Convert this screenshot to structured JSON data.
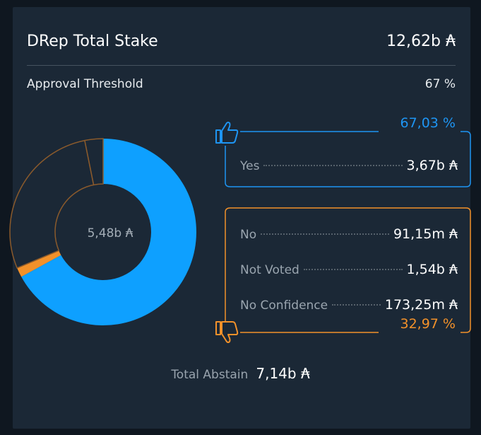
{
  "header": {
    "title": "DRep Total Stake",
    "total_stake": "12,62b ₳"
  },
  "threshold": {
    "label": "Approval Threshold",
    "value": "67 %"
  },
  "chart_data": {
    "type": "pie",
    "center_label": "5,48b ₳",
    "slices": [
      {
        "name": "Yes",
        "value": 3.67,
        "color": "#0ea0ff"
      },
      {
        "name": "No",
        "value": 0.09115,
        "color": "#f2912a"
      },
      {
        "name": "Not Voted",
        "value": 1.54,
        "color": "#1b2836"
      },
      {
        "name": "No Confidence",
        "value": 0.17325,
        "color": "#1b2836"
      }
    ]
  },
  "yes_block": {
    "percent": "67,03 %",
    "rows": [
      {
        "label": "Yes",
        "value": "3,67b ₳"
      }
    ]
  },
  "no_block": {
    "percent": "32,97 %",
    "rows": [
      {
        "label": "No",
        "value": "91,15m ₳"
      },
      {
        "label": "Not Voted",
        "value": "1,54b ₳"
      },
      {
        "label": "No Confidence",
        "value": "173,25m ₳"
      }
    ]
  },
  "abstain": {
    "label": "Total Abstain",
    "value": "7,14b ₳"
  },
  "colors": {
    "yes": "#1e95f3",
    "no": "#f2912a"
  },
  "icons": {
    "yes": "thumbs-up-icon",
    "no": "thumbs-down-icon"
  }
}
